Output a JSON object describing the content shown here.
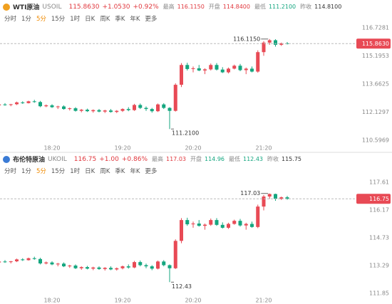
{
  "tabs": [
    "分时",
    "1分",
    "5分",
    "15分",
    "1时",
    "日K",
    "周K",
    "季K",
    "年K",
    "更多"
  ],
  "selected_tab": 2,
  "quotes": [
    {
      "name": "WTI原油",
      "code": "USOIL",
      "price": "115.8630",
      "change": "+1.0530",
      "pct": "+0.92%",
      "icon_color": "#f0a020",
      "stats": [
        {
          "label": "最高",
          "value": "116.1150",
          "color": "#e0383e"
        },
        {
          "label": "开盘",
          "value": "114.8400",
          "color": "#e0383e"
        },
        {
          "label": "最低",
          "value": "111.2100",
          "color": "#14a67f"
        },
        {
          "label": "昨收",
          "value": "114.8100",
          "color": "#333333"
        }
      ]
    },
    {
      "name": "布伦特原油",
      "code": "UKOIL",
      "price": "116.75",
      "change": "+1.00",
      "pct": "+0.86%",
      "icon_color": "#3a7bd5",
      "stats": [
        {
          "label": "最高",
          "value": "117.03",
          "color": "#e0383e"
        },
        {
          "label": "开盘",
          "value": "114.96",
          "color": "#14a67f"
        },
        {
          "label": "最低",
          "value": "112.43",
          "color": "#14a67f"
        },
        {
          "label": "昨收",
          "value": "115.75",
          "color": "#333333"
        }
      ]
    }
  ],
  "chart_data": [
    {
      "type": "candlestick",
      "up_color": "#e84a55",
      "down_color": "#14a67f",
      "categories": [
        null,
        null,
        null,
        null,
        null,
        null,
        null,
        null,
        null,
        "18:20",
        null,
        null,
        null,
        null,
        null,
        null,
        null,
        null,
        null,
        null,
        null,
        "19:20",
        null,
        null,
        null,
        null,
        null,
        null,
        null,
        null,
        null,
        null,
        null,
        "20:20",
        null,
        null,
        null,
        null,
        null,
        null,
        null,
        null,
        null,
        null,
        null,
        "21:20",
        null,
        null,
        null,
        null
      ],
      "open": [
        112.5,
        112.55,
        112.52,
        112.56,
        112.66,
        112.62,
        112.72,
        112.68,
        112.45,
        112.5,
        112.4,
        112.44,
        112.3,
        112.34,
        112.2,
        112.26,
        112.18,
        112.24,
        112.16,
        112.22,
        112.14,
        112.2,
        112.3,
        112.24,
        112.52,
        112.36,
        112.3,
        112.18,
        112.55,
        112.36,
        112.2,
        113.62,
        114.7,
        114.48,
        114.52,
        114.4,
        114.46,
        114.7,
        114.45,
        114.3,
        114.5,
        114.66,
        114.42,
        114.5,
        114.34,
        115.4,
        115.92,
        116.05,
        115.8,
        115.88
      ],
      "high": [
        112.6,
        112.62,
        112.58,
        112.7,
        112.72,
        112.75,
        112.8,
        112.74,
        112.55,
        112.56,
        112.48,
        112.5,
        112.38,
        112.4,
        112.3,
        112.32,
        112.28,
        112.3,
        112.26,
        112.3,
        112.24,
        112.34,
        112.4,
        112.58,
        112.6,
        112.44,
        112.36,
        112.6,
        112.62,
        112.4,
        113.7,
        114.8,
        114.82,
        114.62,
        114.7,
        114.52,
        114.78,
        114.8,
        114.58,
        114.56,
        114.72,
        114.76,
        114.56,
        114.62,
        115.5,
        116.0,
        116.115,
        116.1,
        115.92,
        115.95
      ],
      "low": [
        112.42,
        112.48,
        112.45,
        112.52,
        112.58,
        112.6,
        112.64,
        112.4,
        112.4,
        112.36,
        112.3,
        112.26,
        112.22,
        112.16,
        112.12,
        112.14,
        112.1,
        112.12,
        112.08,
        112.1,
        112.08,
        112.14,
        112.18,
        112.2,
        112.3,
        112.2,
        112.1,
        112.14,
        112.3,
        111.21,
        112.16,
        113.5,
        114.4,
        114.3,
        114.36,
        114.2,
        114.4,
        114.4,
        114.26,
        114.24,
        114.46,
        114.36,
        114.2,
        114.3,
        114.28,
        115.2,
        115.8,
        115.7,
        115.74,
        115.82
      ],
      "close": [
        112.55,
        112.52,
        112.56,
        112.66,
        112.62,
        112.72,
        112.68,
        112.45,
        112.5,
        112.4,
        112.44,
        112.3,
        112.34,
        112.2,
        112.26,
        112.18,
        112.24,
        112.16,
        112.22,
        112.14,
        112.2,
        112.3,
        112.24,
        112.52,
        112.36,
        112.3,
        112.18,
        112.55,
        112.36,
        112.2,
        113.62,
        114.7,
        114.48,
        114.52,
        114.4,
        114.46,
        114.7,
        114.45,
        114.3,
        114.5,
        114.66,
        114.42,
        114.5,
        114.34,
        115.4,
        115.92,
        116.05,
        115.8,
        115.88,
        115.863
      ],
      "ylim": [
        110.5969,
        116.7281
      ],
      "yticks": [
        110.5969,
        112.1297,
        113.6625,
        115.1953,
        116.7281
      ],
      "current_price": {
        "value": 115.863,
        "label": "115.8630"
      },
      "max_label": {
        "value": 116.115,
        "label": "116.1150"
      },
      "min_label": {
        "value": 111.21,
        "label": "111.2100"
      }
    },
    {
      "type": "candlestick",
      "up_color": "#e84a55",
      "down_color": "#14a67f",
      "categories": [
        null,
        null,
        null,
        null,
        null,
        null,
        null,
        null,
        null,
        "18:20",
        null,
        null,
        null,
        null,
        null,
        null,
        null,
        null,
        null,
        null,
        null,
        "19:20",
        null,
        null,
        null,
        null,
        null,
        null,
        null,
        null,
        null,
        null,
        null,
        "20:20",
        null,
        null,
        null,
        null,
        null,
        null,
        null,
        null,
        null,
        null,
        null,
        "21:20",
        null,
        null,
        null,
        null
      ],
      "open": [
        113.45,
        113.5,
        113.47,
        113.51,
        113.61,
        113.57,
        113.67,
        113.63,
        113.4,
        113.45,
        113.35,
        113.39,
        113.25,
        113.29,
        113.15,
        113.21,
        113.13,
        113.19,
        113.11,
        113.17,
        113.09,
        113.15,
        113.25,
        113.19,
        113.47,
        113.31,
        113.25,
        113.13,
        113.5,
        113.31,
        113.15,
        114.57,
        115.65,
        115.43,
        115.47,
        115.35,
        115.41,
        115.65,
        115.4,
        115.25,
        115.45,
        115.61,
        115.37,
        115.45,
        115.29,
        116.35,
        116.87,
        117.0,
        116.75,
        116.83
      ],
      "high": [
        113.55,
        113.57,
        113.53,
        113.65,
        113.67,
        113.7,
        113.75,
        113.69,
        113.5,
        113.51,
        113.43,
        113.45,
        113.33,
        113.35,
        113.25,
        113.27,
        113.23,
        113.25,
        113.21,
        113.25,
        113.19,
        113.29,
        113.35,
        113.53,
        113.55,
        113.39,
        113.31,
        113.55,
        113.57,
        113.35,
        114.65,
        115.75,
        115.77,
        115.57,
        115.65,
        115.47,
        115.73,
        115.75,
        115.53,
        115.51,
        115.67,
        115.71,
        115.51,
        115.57,
        116.45,
        116.95,
        117.03,
        117.02,
        116.87,
        116.9
      ],
      "low": [
        113.37,
        113.43,
        113.4,
        113.47,
        113.53,
        113.55,
        113.59,
        113.35,
        113.35,
        113.31,
        113.25,
        113.21,
        113.17,
        113.11,
        113.07,
        113.09,
        113.05,
        113.07,
        113.03,
        113.05,
        113.03,
        113.09,
        113.13,
        113.15,
        113.25,
        113.15,
        113.05,
        113.09,
        113.25,
        112.43,
        113.11,
        114.45,
        115.35,
        115.25,
        115.31,
        115.15,
        115.35,
        115.35,
        115.21,
        115.19,
        115.41,
        115.31,
        115.15,
        115.25,
        115.23,
        116.15,
        116.75,
        116.65,
        116.69,
        116.7
      ],
      "close": [
        113.5,
        113.47,
        113.51,
        113.61,
        113.57,
        113.67,
        113.63,
        113.4,
        113.45,
        113.35,
        113.39,
        113.25,
        113.29,
        113.15,
        113.21,
        113.13,
        113.19,
        113.11,
        113.17,
        113.09,
        113.15,
        113.25,
        113.19,
        113.47,
        113.31,
        113.25,
        113.13,
        113.5,
        113.31,
        113.15,
        114.57,
        115.65,
        115.43,
        115.47,
        115.35,
        115.41,
        115.65,
        115.4,
        115.25,
        115.45,
        115.61,
        115.37,
        115.45,
        115.29,
        116.35,
        116.87,
        117.0,
        116.75,
        116.83,
        116.75
      ],
      "ylim": [
        111.85,
        117.61
      ],
      "yticks": [
        111.85,
        113.29,
        114.73,
        116.17,
        117.61
      ],
      "current_price": {
        "value": 116.75,
        "label": "116.75"
      },
      "max_label": {
        "value": 117.03,
        "label": "117.03"
      },
      "min_label": {
        "value": 112.43,
        "label": "112.43"
      }
    }
  ]
}
